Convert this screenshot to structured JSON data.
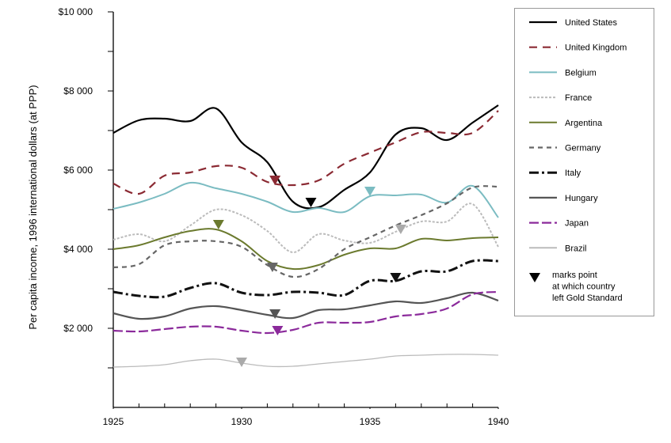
{
  "chart_data": {
    "type": "line",
    "title": "",
    "xlabel": "",
    "ylabel": "Per capita income, 1996 international dollars (at PPP)",
    "xlim": [
      1925,
      1940
    ],
    "ylim": [
      0,
      10000
    ],
    "x_tick_labels": [
      "1925",
      "1930",
      "1935",
      "1940"
    ],
    "y_tick_labels": [
      "$2 000",
      "$4 000",
      "$6 000",
      "$8 000",
      "$10 000"
    ],
    "x": [
      1925,
      1926,
      1927,
      1928,
      1929,
      1930,
      1931,
      1932,
      1933,
      1934,
      1935,
      1936,
      1937,
      1938,
      1939,
      1940
    ],
    "legend_position": "right",
    "series": [
      {
        "name": "United States",
        "color": "#000000",
        "dash": "",
        "width": 2.2,
        "values": [
          6940,
          7260,
          7300,
          7240,
          7560,
          6700,
          6200,
          5200,
          5060,
          5500,
          5940,
          6900,
          7060,
          6760,
          7200,
          7640
        ],
        "gold_exit": {
          "x": 1932.7,
          "y": 5060
        }
      },
      {
        "name": "United Kingdom",
        "color": "#8b2a33",
        "dash": "10 7",
        "width": 2.2,
        "values": [
          5660,
          5400,
          5860,
          5940,
          6100,
          6060,
          5700,
          5620,
          5740,
          6160,
          6440,
          6700,
          6960,
          6940,
          6940,
          7500
        ],
        "gold_exit": {
          "x": 1931.3,
          "y": 5620
        }
      },
      {
        "name": "Belgium",
        "color": "#7bbcc2",
        "dash": "",
        "width": 2,
        "values": [
          5020,
          5180,
          5400,
          5680,
          5540,
          5400,
          5200,
          4940,
          5040,
          4940,
          5340,
          5360,
          5380,
          5180,
          5600,
          4800
        ],
        "gold_exit": {
          "x": 1935,
          "y": 5340
        }
      },
      {
        "name": "France",
        "color": "#bbbbbb",
        "dash": "3 2",
        "width": 2,
        "values": [
          4240,
          4380,
          4200,
          4600,
          5000,
          4860,
          4460,
          3920,
          4380,
          4220,
          4160,
          4440,
          4700,
          4700,
          5140,
          4060
        ],
        "gold_exit": {
          "x": 1936.2,
          "y": 4380
        }
      },
      {
        "name": "Argentina",
        "color": "#6b7a2e",
        "dash": "",
        "width": 2,
        "values": [
          4000,
          4100,
          4300,
          4460,
          4500,
          4200,
          3700,
          3500,
          3600,
          3860,
          4020,
          4020,
          4260,
          4220,
          4280,
          4300
        ],
        "gold_exit": {
          "x": 1929.1,
          "y": 4500
        }
      },
      {
        "name": "Germany",
        "color": "#666666",
        "dash": "6 5",
        "width": 2.2,
        "values": [
          3540,
          3620,
          4100,
          4200,
          4200,
          4060,
          3600,
          3300,
          3500,
          4000,
          4300,
          4600,
          4860,
          5160,
          5560,
          5580
        ],
        "gold_exit": {
          "x": 1931.2,
          "y": 3420
        }
      },
      {
        "name": "Italy",
        "color": "#111111",
        "dash": "12 4 3 4",
        "width": 3,
        "values": [
          2920,
          2820,
          2800,
          3020,
          3140,
          2900,
          2840,
          2920,
          2900,
          2840,
          3200,
          3200,
          3440,
          3440,
          3700,
          3700
        ],
        "gold_exit": {
          "x": 1936,
          "y": 3160
        }
      },
      {
        "name": "Hungary",
        "color": "#555555",
        "dash": "",
        "width": 2.2,
        "values": [
          2380,
          2240,
          2300,
          2500,
          2560,
          2460,
          2340,
          2260,
          2460,
          2480,
          2580,
          2680,
          2640,
          2760,
          2900,
          2700
        ],
        "gold_exit": {
          "x": 1931.3,
          "y": 2240
        }
      },
      {
        "name": "Japan",
        "color": "#8b2a9b",
        "dash": "12 4",
        "width": 2.2,
        "values": [
          1940,
          1920,
          1980,
          2040,
          2040,
          1940,
          1880,
          1960,
          2140,
          2140,
          2160,
          2300,
          2360,
          2500,
          2860,
          2920
        ],
        "gold_exit": {
          "x": 1931.4,
          "y": 1820
        }
      },
      {
        "name": "Brazil",
        "color": "#bbbbbb",
        "dash": "",
        "width": 1.3,
        "values": [
          1020,
          1040,
          1080,
          1180,
          1220,
          1120,
          1040,
          1040,
          1100,
          1160,
          1220,
          1300,
          1320,
          1340,
          1340,
          1320
        ],
        "gold_exit": {
          "x": 1930,
          "y": 1020
        }
      }
    ],
    "marker_note": [
      "marks point",
      "at which country",
      "left Gold Standard"
    ]
  }
}
